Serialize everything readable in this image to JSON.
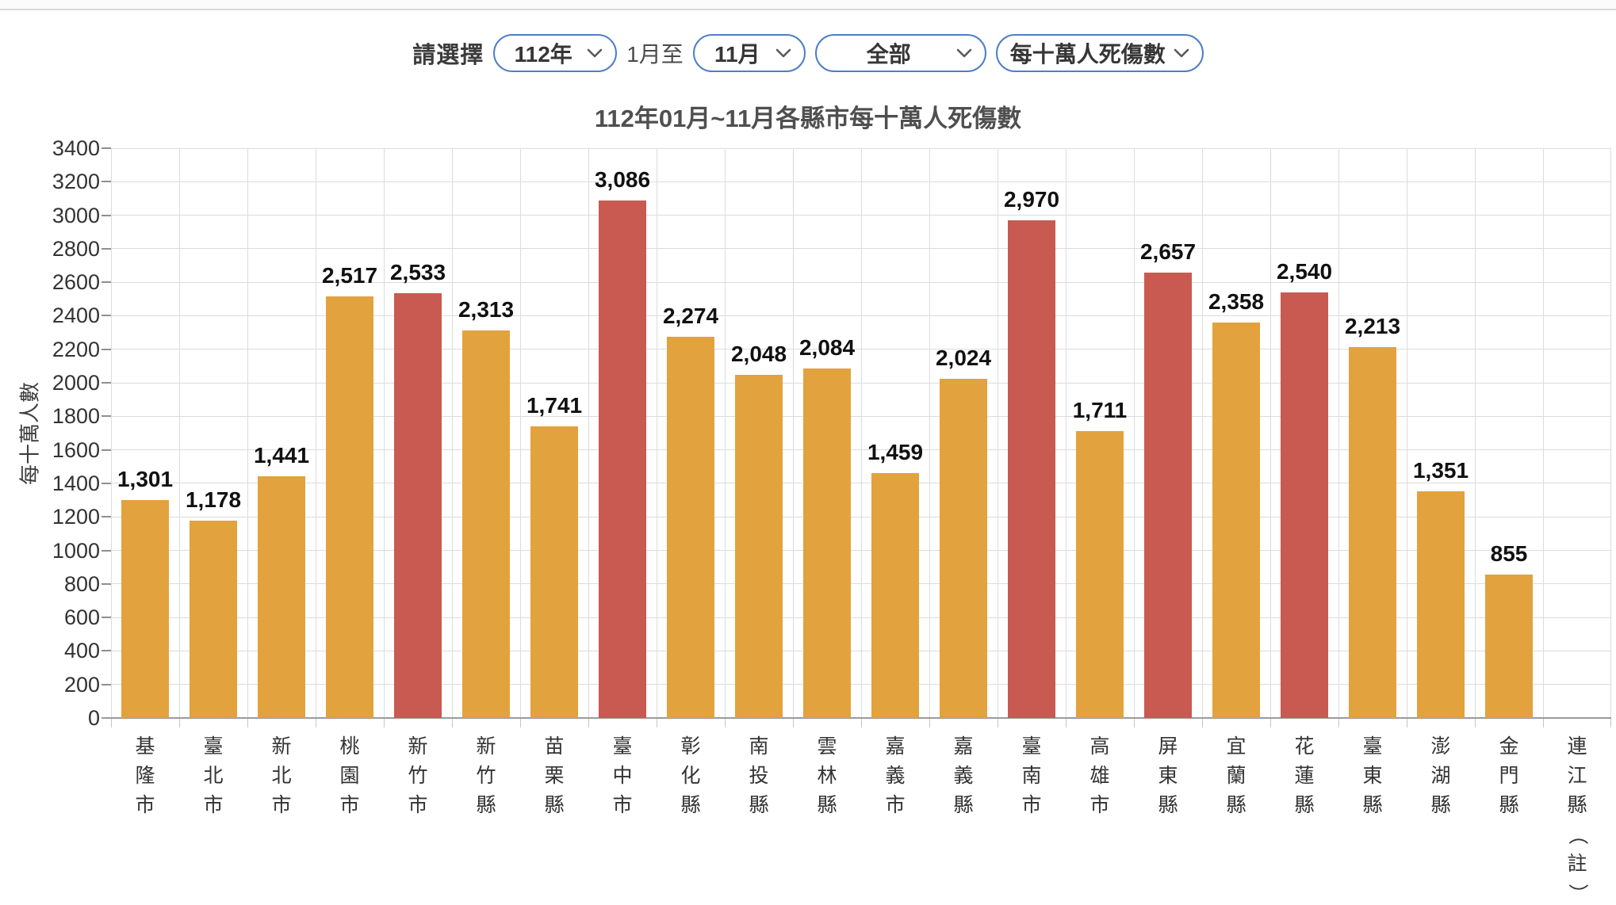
{
  "filters": {
    "label": "請選擇",
    "year_select": {
      "value": "112年"
    },
    "range_text": "1月至",
    "month_select": {
      "value": "11月"
    },
    "region_select": {
      "value": "全部"
    },
    "metric_select": {
      "value": "每十萬人死傷數"
    }
  },
  "chart_data": {
    "type": "bar",
    "title": "112年01月~11月各縣市每十萬人死傷數",
    "xlabel": "",
    "ylabel": "每十萬人數",
    "ylim": [
      0,
      3400
    ],
    "ytick_step": 200,
    "grid": true,
    "legend": "none",
    "categories": [
      "基隆市",
      "臺北市",
      "新北市",
      "桃園市",
      "新竹市",
      "新竹縣",
      "苗栗縣",
      "臺中市",
      "彰化縣",
      "南投縣",
      "雲林縣",
      "嘉義市",
      "嘉義縣",
      "臺南市",
      "高雄市",
      "屏東縣",
      "宜蘭縣",
      "花蓮縣",
      "臺東縣",
      "澎湖縣",
      "金門縣",
      "連江縣（註）"
    ],
    "values": [
      1301,
      1178,
      1441,
      2517,
      2533,
      2313,
      1741,
      3086,
      2274,
      2048,
      2084,
      1459,
      2024,
      2970,
      1711,
      2657,
      2358,
      2540,
      2213,
      1351,
      855,
      null
    ],
    "highlighted_indices": [
      4,
      7,
      13,
      15,
      17
    ],
    "colors": {
      "bar": "#E2A23E",
      "bar_highlight": "#C85A52",
      "grid": "#dcdcdc",
      "axis": "#9b9b9b",
      "accent_border": "#4d7ec9"
    }
  }
}
